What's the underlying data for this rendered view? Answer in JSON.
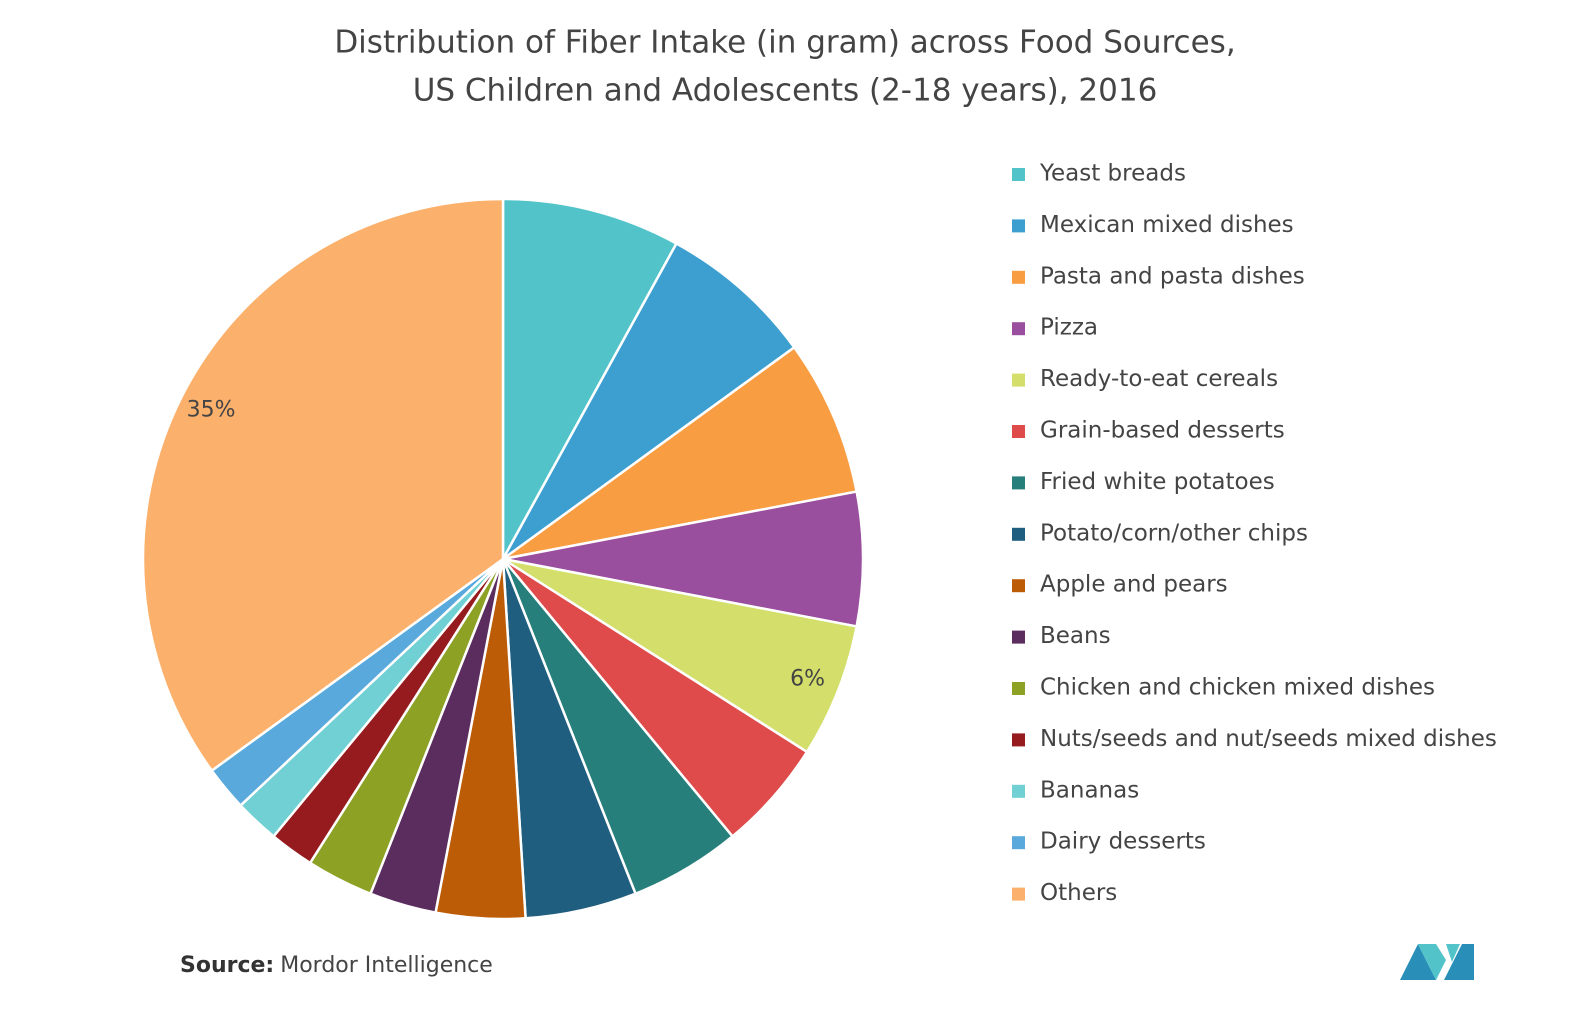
{
  "chart_data": {
    "type": "pie",
    "title": "Distribution of Fiber Intake (in gram) across Food Sources,",
    "subtitle": "US Children and Adolescents (2-18 years), 2016",
    "categories": [
      "Yeast breads",
      "Mexican mixed dishes",
      "Pasta and pasta dishes",
      "Pizza",
      "Ready-to-eat cereals",
      "Grain-based desserts",
      "Fried white potatoes",
      "Potato/corn/other chips",
      "Apple and pears",
      "Beans",
      "Chicken and chicken mixed dishes",
      "Nuts/seeds and nut/seeds mixed dishes",
      "Bananas",
      "Dairy desserts",
      "Others"
    ],
    "values": [
      8,
      7,
      7,
      6,
      6,
      5,
      5,
      5,
      4,
      3,
      3,
      2,
      2,
      2,
      35
    ],
    "value_labels": [
      null,
      null,
      null,
      null,
      "6%",
      null,
      null,
      null,
      null,
      null,
      null,
      null,
      null,
      null,
      "35%"
    ],
    "colors": [
      "#52c4c9",
      "#3d9ed0",
      "#f99d43",
      "#9a4f9e",
      "#d3df6a",
      "#df4a4a",
      "#277f7c",
      "#1f5e7e",
      "#bd5c07",
      "#5b2d5f",
      "#8da125",
      "#951b1e",
      "#70d0d3",
      "#5aa9dc",
      "#fbb06b"
    ],
    "legend": "right",
    "source_label": "Source:",
    "source": "Mordor Intelligence"
  }
}
